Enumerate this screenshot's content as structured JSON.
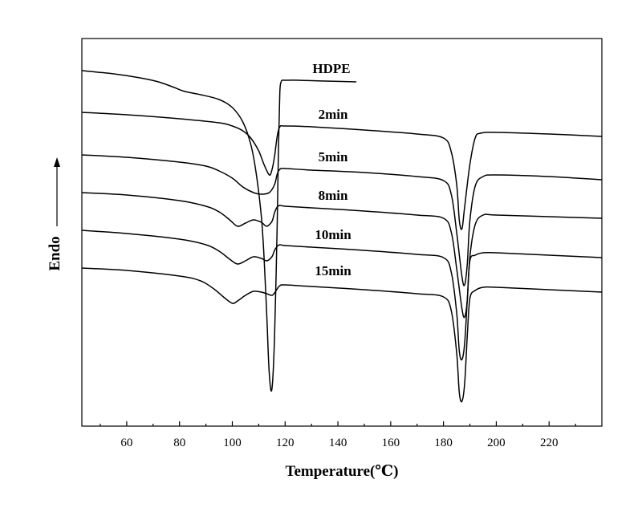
{
  "chart_data": {
    "type": "line",
    "xlabel": "Temperature(℃)",
    "ylabel": "Endo",
    "xlim": [
      43,
      240
    ],
    "x_ticks": [
      60,
      80,
      100,
      120,
      140,
      160,
      180,
      200,
      220
    ],
    "y_ticks_shown": false,
    "grid": false,
    "legend": "inline labels above each curve",
    "series": [
      {
        "name": "HDPE",
        "x": [
          43,
          55,
          65,
          72,
          78,
          82,
          88,
          95,
          100,
          104,
          107,
          109,
          111,
          112,
          113,
          114,
          115,
          116,
          117,
          117.5,
          118,
          118.5,
          119,
          120,
          125,
          135,
          147
        ],
        "y": [
          88,
          92,
          97,
          102,
          109,
          114,
          118,
          124,
          134,
          152,
          180,
          215,
          270,
          320,
          390,
          465,
          485,
          420,
          280,
          180,
          115,
          102,
          100,
          100,
          100,
          101,
          102
        ]
      },
      {
        "name": "2min",
        "x": [
          43,
          60,
          80,
          95,
          100,
          104,
          107,
          110,
          112,
          114,
          115,
          116,
          117,
          118,
          120,
          130,
          150,
          170,
          180,
          183,
          185,
          186,
          187,
          188,
          190,
          192,
          194,
          200,
          220,
          240
        ],
        "y": [
          140,
          143,
          148,
          153,
          157,
          163,
          172,
          188,
          205,
          218,
          212,
          195,
          170,
          158,
          157,
          158,
          162,
          167,
          172,
          190,
          230,
          275,
          285,
          258,
          205,
          172,
          166,
          165,
          167,
          170
        ]
      },
      {
        "name": "5min",
        "x": [
          43,
          60,
          80,
          90,
          95,
          100,
          104,
          108,
          111,
          114,
          116,
          117,
          118,
          120,
          130,
          150,
          170,
          180,
          183,
          185,
          187,
          188,
          189,
          190,
          192,
          195,
          200,
          220,
          240
        ],
        "y": [
          193,
          196,
          202,
          207,
          213,
          222,
          233,
          240,
          242,
          240,
          230,
          217,
          211,
          210,
          212,
          215,
          220,
          225,
          243,
          290,
          345,
          355,
          330,
          275,
          232,
          220,
          218,
          220,
          224
        ]
      },
      {
        "name": "8min",
        "x": [
          43,
          60,
          80,
          90,
          95,
          99,
          102,
          105,
          108,
          111,
          113,
          115,
          116,
          117,
          118,
          120,
          130,
          150,
          170,
          180,
          183,
          185,
          187,
          188,
          189,
          190,
          192,
          195,
          200,
          220,
          240
        ],
        "y": [
          240,
          243,
          250,
          257,
          264,
          274,
          282,
          278,
          274,
          277,
          282,
          276,
          265,
          258,
          256,
          257,
          259,
          263,
          268,
          272,
          290,
          335,
          385,
          395,
          375,
          320,
          280,
          268,
          268,
          270,
          272
        ]
      },
      {
        "name": "10min",
        "x": [
          43,
          60,
          80,
          90,
          95,
          99,
          102,
          105,
          108,
          111,
          113,
          115,
          116,
          117,
          118,
          120,
          130,
          150,
          170,
          180,
          183,
          185,
          186,
          187,
          188,
          189,
          190,
          192,
          195,
          200,
          220,
          240
        ],
        "y": [
          287,
          291,
          298,
          305,
          313,
          323,
          329,
          325,
          320,
          322,
          325,
          320,
          312,
          307,
          305,
          306,
          308,
          312,
          317,
          321,
          340,
          390,
          438,
          448,
          428,
          375,
          325,
          318,
          315,
          315,
          318,
          321
        ]
      },
      {
        "name": "15min",
        "x": [
          43,
          60,
          80,
          88,
          93,
          97,
          100,
          102,
          105,
          108,
          111,
          113,
          115,
          116,
          117,
          118,
          120,
          130,
          150,
          170,
          180,
          183,
          185,
          186,
          187,
          188,
          189,
          190,
          192,
          195,
          200,
          220,
          240
        ],
        "y": [
          334,
          337,
          344,
          350,
          360,
          371,
          378,
          375,
          368,
          363,
          364,
          366,
          368,
          365,
          360,
          356,
          355,
          357,
          361,
          366,
          370,
          388,
          440,
          490,
          500,
          478,
          420,
          372,
          362,
          358,
          358,
          361,
          364
        ]
      }
    ]
  }
}
